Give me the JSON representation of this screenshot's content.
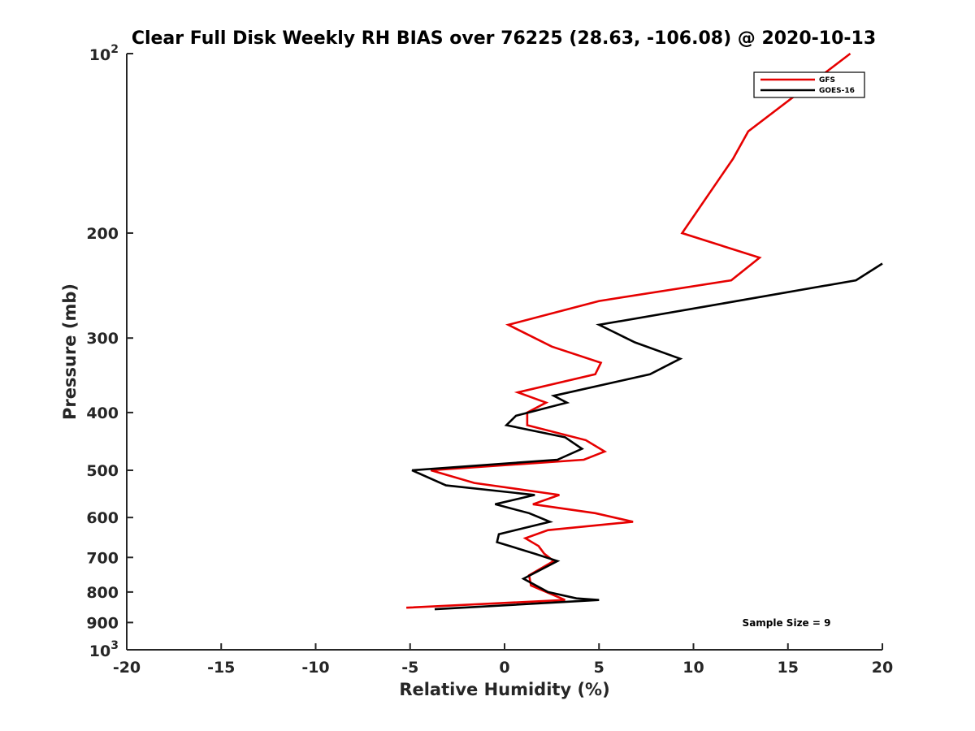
{
  "chart_data": {
    "type": "line",
    "title": "Clear Full Disk Weekly RH BIAS over 76225 (28.63, -106.08) @ 2020-10-13",
    "xlabel": "Relative Humidity (%)",
    "ylabel": "Pressure (mb)",
    "xlim": [
      -20,
      20
    ],
    "ylim": [
      100,
      1000
    ],
    "y_scale": "log",
    "y_reversed": true,
    "grid": false,
    "legend_position": "top-right",
    "x_ticks": [
      {
        "value": -20,
        "label": "-20"
      },
      {
        "value": -15,
        "label": "-15"
      },
      {
        "value": -10,
        "label": "-10"
      },
      {
        "value": -5,
        "label": "-5"
      },
      {
        "value": 0,
        "label": "0"
      },
      {
        "value": 5,
        "label": "5"
      },
      {
        "value": 10,
        "label": "10"
      },
      {
        "value": 15,
        "label": "15"
      },
      {
        "value": 20,
        "label": "20"
      }
    ],
    "y_ticks": [
      {
        "value": 100,
        "base": "10",
        "exp": "2"
      },
      {
        "value": 200,
        "label": "200"
      },
      {
        "value": 300,
        "label": "300"
      },
      {
        "value": 400,
        "label": "400"
      },
      {
        "value": 500,
        "label": "500"
      },
      {
        "value": 600,
        "label": "600"
      },
      {
        "value": 700,
        "label": "700"
      },
      {
        "value": 800,
        "label": "800"
      },
      {
        "value": 900,
        "label": "900"
      },
      {
        "value": 1000,
        "base": "10",
        "exp": "3"
      }
    ],
    "series": [
      {
        "name": "GFS",
        "color": "#e60000",
        "points": [
          [
            18.3,
            100
          ],
          [
            12.9,
            135
          ],
          [
            12.1,
            150
          ],
          [
            9.4,
            200
          ],
          [
            13.5,
            220
          ],
          [
            12.0,
            240
          ],
          [
            5.0,
            260
          ],
          [
            0.2,
            285
          ],
          [
            2.5,
            310
          ],
          [
            5.1,
            330
          ],
          [
            4.8,
            345
          ],
          [
            0.7,
            370
          ],
          [
            2.2,
            385
          ],
          [
            1.2,
            400
          ],
          [
            1.2,
            420
          ],
          [
            4.3,
            445
          ],
          [
            5.3,
            465
          ],
          [
            4.2,
            480
          ],
          [
            -3.9,
            500
          ],
          [
            -1.6,
            525
          ],
          [
            2.9,
            550
          ],
          [
            1.5,
            570
          ],
          [
            4.8,
            590
          ],
          [
            6.8,
            610
          ],
          [
            2.3,
            630
          ],
          [
            1.1,
            650
          ],
          [
            1.8,
            670
          ],
          [
            2.1,
            690
          ],
          [
            2.6,
            710
          ],
          [
            1.3,
            750
          ],
          [
            1.4,
            780
          ],
          [
            3.2,
            825
          ],
          [
            -5.2,
            850
          ]
        ]
      },
      {
        "name": "GOES-16",
        "color": "#000000",
        "points": [
          [
            20.0,
            225
          ],
          [
            18.6,
            240
          ],
          [
            10.8,
            265
          ],
          [
            5.0,
            285
          ],
          [
            6.9,
            305
          ],
          [
            9.3,
            325
          ],
          [
            7.7,
            345
          ],
          [
            2.6,
            375
          ],
          [
            3.3,
            385
          ],
          [
            0.6,
            405
          ],
          [
            0.1,
            420
          ],
          [
            3.2,
            440
          ],
          [
            4.1,
            460
          ],
          [
            2.8,
            480
          ],
          [
            -4.9,
            500
          ],
          [
            -3.1,
            530
          ],
          [
            1.6,
            550
          ],
          [
            -0.5,
            570
          ],
          [
            1.3,
            590
          ],
          [
            2.4,
            610
          ],
          [
            -0.3,
            640
          ],
          [
            -0.4,
            660
          ],
          [
            1.6,
            690
          ],
          [
            2.8,
            710
          ],
          [
            1.0,
            760
          ],
          [
            2.3,
            800
          ],
          [
            3.8,
            820
          ],
          [
            5.0,
            825
          ],
          [
            -3.7,
            855
          ]
        ]
      }
    ],
    "annotations": [
      "Sample Size = 9"
    ]
  }
}
